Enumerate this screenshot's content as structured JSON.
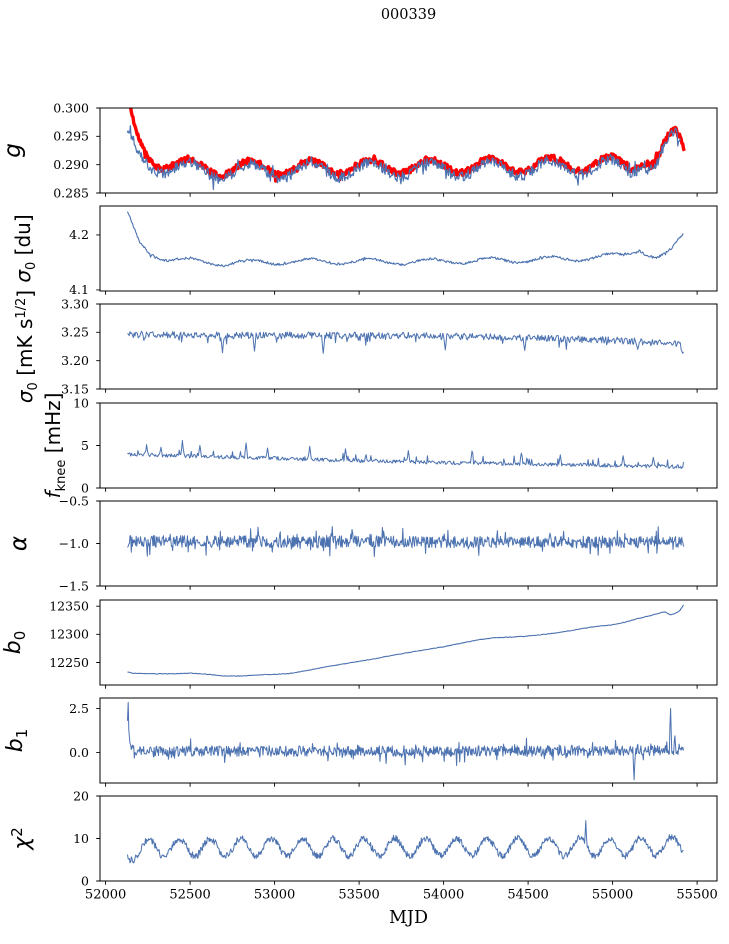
{
  "title": "000339",
  "xlabel": "MJD",
  "colors": {
    "line_blue": "#4c72b0",
    "line_red": "#ff0000",
    "axis": "#000000",
    "background": "#ffffff"
  },
  "axis": {
    "xlim": [
      51967,
      55618
    ],
    "xtick_values": [
      52000,
      52500,
      53000,
      53500,
      54000,
      54500,
      55000,
      55500
    ],
    "xtick_labels": [
      "52000",
      "52500",
      "53000",
      "53500",
      "54000",
      "54500",
      "55000",
      "55500"
    ],
    "shared_x": true
  },
  "chart_data": [
    {
      "type": "line",
      "name": "g",
      "ylabel": "g",
      "ylabel_segments": [
        {
          "t": "g",
          "it": true
        }
      ],
      "ylim": [
        0.285,
        0.3
      ],
      "ytick_values": [
        0.285,
        0.29,
        0.295,
        0.3
      ],
      "ytick_labels": [
        "0.285",
        "0.290",
        "0.295",
        "0.300"
      ],
      "series": [
        {
          "name": "g-reference-red",
          "color": "#ff0000",
          "width": 3.4,
          "n": 680,
          "seed": 11,
          "xrange": [
            52128,
            55425
          ],
          "noise": 0.00055,
          "burst": {
            "prob": 0.05,
            "scale": 0.0008,
            "bias": "both"
          },
          "osc": {
            "amp": 0.0012,
            "period": 355,
            "peak": 52500
          },
          "keypoints": [
            [
              52128,
              0.3018
            ],
            [
              52155,
              0.2978
            ],
            [
              52185,
              0.2946
            ],
            [
              52230,
              0.2922
            ],
            [
              52300,
              0.2908
            ],
            [
              52400,
              0.2901
            ],
            [
              52550,
              0.2896
            ],
            [
              52700,
              0.2892
            ],
            [
              52900,
              0.2896
            ],
            [
              53100,
              0.2894
            ],
            [
              53400,
              0.2897
            ],
            [
              53800,
              0.2897
            ],
            [
              54200,
              0.2898
            ],
            [
              54600,
              0.29
            ],
            [
              55000,
              0.2902
            ],
            [
              55100,
              0.2898
            ],
            [
              55180,
              0.2912
            ],
            [
              55230,
              0.2903
            ],
            [
              55270,
              0.2908
            ],
            [
              55320,
              0.2938
            ],
            [
              55370,
              0.2953
            ],
            [
              55400,
              0.2941
            ],
            [
              55425,
              0.2926
            ]
          ]
        },
        {
          "name": "g-measured-blue",
          "color": "#4c72b0",
          "width": 1.2,
          "n": 700,
          "seed": 12,
          "xrange": [
            52128,
            55400
          ],
          "noise": 0.0009,
          "burst": {
            "prob": 0.07,
            "scale": 0.0016,
            "bias": "both"
          },
          "osc": {
            "amp": 0.0013,
            "period": 355,
            "peak": 52500
          },
          "keypoints": [
            [
              52128,
              0.2948
            ],
            [
              52160,
              0.2931
            ],
            [
              52200,
              0.2914
            ],
            [
              52260,
              0.2902
            ],
            [
              52350,
              0.2896
            ],
            [
              52500,
              0.2891
            ],
            [
              52700,
              0.2886
            ],
            [
              52900,
              0.289
            ],
            [
              53100,
              0.2888
            ],
            [
              53400,
              0.2891
            ],
            [
              53800,
              0.2891
            ],
            [
              54200,
              0.2892
            ],
            [
              54600,
              0.2894
            ],
            [
              55000,
              0.2896
            ],
            [
              55100,
              0.2892
            ],
            [
              55180,
              0.2906
            ],
            [
              55230,
              0.2897
            ],
            [
              55270,
              0.2902
            ],
            [
              55320,
              0.2932
            ],
            [
              55375,
              0.2948
            ],
            [
              55400,
              0.2938
            ]
          ]
        }
      ]
    },
    {
      "type": "line",
      "name": "sigma0-du",
      "ylabel": "σ₀ [du]",
      "ylabel_segments": [
        {
          "t": "σ",
          "it": true
        },
        {
          "t": "0",
          "sub": true
        },
        {
          "t": " [du]"
        }
      ],
      "ylim": [
        4.098,
        4.2526
      ],
      "ytick_values": [
        4.1,
        4.2
      ],
      "ytick_labels": [
        "4.1",
        "4.2"
      ],
      "series": [
        {
          "name": "sigma0-du-line",
          "color": "#4c72b0",
          "width": 1.1,
          "n": 680,
          "seed": 21,
          "xrange": [
            52130,
            55420
          ],
          "noise": 0.0022,
          "burst": {
            "prob": 0.05,
            "scale": 0.004,
            "bias": "both"
          },
          "osc": {
            "amp": 0.005,
            "period": 355,
            "peak": 52500
          },
          "keypoints": [
            [
              52130,
              4.238
            ],
            [
              52160,
              4.215
            ],
            [
              52200,
              4.185
            ],
            [
              52260,
              4.168
            ],
            [
              52350,
              4.158
            ],
            [
              52500,
              4.152
            ],
            [
              52700,
              4.149
            ],
            [
              53000,
              4.151
            ],
            [
              53400,
              4.152
            ],
            [
              53800,
              4.151
            ],
            [
              54200,
              4.153
            ],
            [
              54600,
              4.155
            ],
            [
              54900,
              4.159
            ],
            [
              55050,
              4.163
            ],
            [
              55120,
              4.17
            ],
            [
              55160,
              4.176
            ],
            [
              55210,
              4.165
            ],
            [
              55260,
              4.157
            ],
            [
              55310,
              4.163
            ],
            [
              55350,
              4.17
            ],
            [
              55390,
              4.19
            ],
            [
              55420,
              4.2
            ]
          ]
        }
      ]
    },
    {
      "type": "line",
      "name": "sigma0-mks",
      "ylabel": "σ₀ [mK s¹ᐟ²]",
      "ylabel_segments": [
        {
          "t": "σ",
          "it": true
        },
        {
          "t": "0",
          "sub": true
        },
        {
          "t": " [mK s"
        },
        {
          "t": "1/2",
          "sup": true
        },
        {
          "t": "]"
        }
      ],
      "ylim": [
        3.15,
        3.3
      ],
      "ytick_values": [
        3.15,
        3.2,
        3.25,
        3.3
      ],
      "ytick_labels": [
        "3.15",
        "3.20",
        "3.25",
        "3.30"
      ],
      "series": [
        {
          "name": "sigma0-mks-line",
          "color": "#4c72b0",
          "width": 1.0,
          "n": 680,
          "seed": 31,
          "xrange": [
            52130,
            55420
          ],
          "noise": 0.006,
          "burst": {
            "prob": 0.07,
            "scale": 0.013,
            "bias": "down"
          },
          "spikes": [
            [
              52690,
              3.214
            ],
            [
              52880,
              3.217
            ],
            [
              53290,
              3.213
            ],
            [
              54010,
              3.219
            ],
            [
              54480,
              3.218
            ],
            [
              55150,
              3.22
            ],
            [
              55415,
              3.213
            ]
          ],
          "keypoints": [
            [
              52130,
              3.246
            ],
            [
              53000,
              3.245
            ],
            [
              53800,
              3.244
            ],
            [
              54400,
              3.241
            ],
            [
              54900,
              3.237
            ],
            [
              55300,
              3.232
            ],
            [
              55400,
              3.228
            ],
            [
              55420,
              3.22
            ]
          ]
        }
      ]
    },
    {
      "type": "line",
      "name": "fknee",
      "ylabel": "fknee [mHz]",
      "ylabel_segments": [
        {
          "t": "f",
          "it": true
        },
        {
          "t": "knee",
          "sub": true
        },
        {
          "t": " [mHz]"
        }
      ],
      "ylim": [
        0,
        10
      ],
      "ytick_values": [
        0,
        5,
        10
      ],
      "ytick_labels": [
        "0",
        "5",
        "10"
      ],
      "series": [
        {
          "name": "fknee-line",
          "color": "#4c72b0",
          "width": 1.0,
          "n": 700,
          "seed": 41,
          "xrange": [
            52130,
            55420
          ],
          "noise": 0.22,
          "burst": {
            "prob": 0.1,
            "scale": 0.8,
            "bias": "up"
          },
          "spikes": [
            [
              52245,
              5.1
            ],
            [
              52330,
              4.8
            ],
            [
              52455,
              5.6
            ],
            [
              52560,
              5.0
            ],
            [
              52830,
              5.3
            ],
            [
              52960,
              4.7
            ],
            [
              53210,
              4.9
            ],
            [
              53420,
              4.6
            ],
            [
              53790,
              4.4
            ],
            [
              54170,
              4.35
            ],
            [
              54460,
              4.1
            ],
            [
              54690,
              3.9
            ],
            [
              55060,
              3.8
            ],
            [
              55240,
              3.6
            ]
          ],
          "keypoints": [
            [
              52130,
              3.95
            ],
            [
              52400,
              3.8
            ],
            [
              52700,
              3.65
            ],
            [
              53000,
              3.5
            ],
            [
              53300,
              3.3
            ],
            [
              53600,
              3.15
            ],
            [
              54000,
              2.98
            ],
            [
              54400,
              2.85
            ],
            [
              54800,
              2.72
            ],
            [
              55100,
              2.62
            ],
            [
              55420,
              2.5
            ]
          ]
        }
      ]
    },
    {
      "type": "line",
      "name": "alpha",
      "ylabel": "α",
      "ylabel_segments": [
        {
          "t": "α",
          "it": true
        }
      ],
      "ylim": [
        -1.5,
        -0.5
      ],
      "ytick_values": [
        -1.5,
        -1.0,
        -0.5
      ],
      "ytick_labels": [
        "−1.5",
        "−1.0",
        "−0.5"
      ],
      "series": [
        {
          "name": "alpha-line",
          "color": "#4c72b0",
          "width": 1.0,
          "n": 900,
          "seed": 51,
          "xrange": [
            52130,
            55420
          ],
          "noise": 0.07,
          "burst": {
            "prob": 0.12,
            "scale": 0.12,
            "bias": "both"
          },
          "keypoints": [
            [
              52130,
              -0.975
            ],
            [
              55420,
              -0.985
            ]
          ]
        }
      ]
    },
    {
      "type": "line",
      "name": "b0",
      "ylabel": "b₀",
      "ylabel_segments": [
        {
          "t": "b",
          "it": true
        },
        {
          "t": "0",
          "sub": true
        }
      ],
      "ylim": [
        12210,
        12361
      ],
      "ytick_values": [
        12250,
        12300,
        12350
      ],
      "ytick_labels": [
        "12250",
        "12300",
        "12350"
      ],
      "series": [
        {
          "name": "b0-line",
          "color": "#4c72b0",
          "width": 1.1,
          "n": 460,
          "seed": 61,
          "xrange": [
            52130,
            55420
          ],
          "noise": 0.5,
          "keypoints": [
            [
              52130,
              12233
            ],
            [
              52160,
              12231
            ],
            [
              52250,
              12230
            ],
            [
              52400,
              12230
            ],
            [
              52500,
              12231
            ],
            [
              52600,
              12229
            ],
            [
              52700,
              12226
            ],
            [
              52800,
              12226
            ],
            [
              52900,
              12228
            ],
            [
              53000,
              12229
            ],
            [
              53080,
              12230
            ],
            [
              53200,
              12236
            ],
            [
              53300,
              12242
            ],
            [
              53400,
              12247
            ],
            [
              53500,
              12252
            ],
            [
              53600,
              12257
            ],
            [
              53700,
              12263
            ],
            [
              53800,
              12268
            ],
            [
              53900,
              12273
            ],
            [
              54000,
              12278
            ],
            [
              54100,
              12284
            ],
            [
              54200,
              12290
            ],
            [
              54300,
              12294
            ],
            [
              54400,
              12295
            ],
            [
              54500,
              12297
            ],
            [
              54600,
              12300
            ],
            [
              54700,
              12304
            ],
            [
              54800,
              12309
            ],
            [
              54900,
              12314
            ],
            [
              55000,
              12317
            ],
            [
              55080,
              12322
            ],
            [
              55150,
              12328
            ],
            [
              55220,
              12333
            ],
            [
              55280,
              12338
            ],
            [
              55310,
              12340
            ],
            [
              55340,
              12335
            ],
            [
              55370,
              12337
            ],
            [
              55395,
              12341
            ],
            [
              55420,
              12352
            ]
          ]
        }
      ]
    },
    {
      "type": "line",
      "name": "b1",
      "ylabel": "b₁",
      "ylabel_segments": [
        {
          "t": "b",
          "it": true
        },
        {
          "t": "1",
          "sub": true
        }
      ],
      "ylim": [
        -1.73,
        3.1
      ],
      "ytick_values": [
        0.0,
        2.5
      ],
      "ytick_labels": [
        "0.0",
        "2.5"
      ],
      "series": [
        {
          "name": "b1-line",
          "color": "#4c72b0",
          "width": 1.0,
          "n": 900,
          "seed": 71,
          "xrange": [
            52130,
            55420
          ],
          "noise": 0.3,
          "burst": {
            "prob": 0.12,
            "scale": 0.55,
            "bias": "both"
          },
          "spikes": [
            [
              52133,
              2.85
            ],
            [
              52140,
              0.9
            ],
            [
              55128,
              -1.55
            ],
            [
              55342,
              2.5
            ],
            [
              55368,
              0.95
            ]
          ],
          "keypoints": [
            [
              52130,
              0.6
            ],
            [
              52150,
              0.15
            ],
            [
              52300,
              0.08
            ],
            [
              55420,
              0.1
            ]
          ]
        }
      ]
    },
    {
      "type": "line",
      "name": "chi2",
      "ylabel": "χ²",
      "ylabel_segments": [
        {
          "t": "χ",
          "it": true
        },
        {
          "t": "2",
          "sup": true
        }
      ],
      "ylim": [
        0,
        20
      ],
      "ytick_values": [
        0,
        10,
        20
      ],
      "ytick_labels": [
        "0",
        "10",
        "20"
      ],
      "series": [
        {
          "name": "chi2-line",
          "color": "#4c72b0",
          "width": 1.0,
          "n": 900,
          "seed": 81,
          "xrange": [
            52130,
            55420
          ],
          "noise": 0.8,
          "osc": {
            "amp": 2.1,
            "period": 182,
            "peak": 52255
          },
          "spikes": [
            [
              54840,
              14.2
            ]
          ],
          "keypoints": [
            [
              52130,
              6.5
            ],
            [
              52200,
              7.6
            ],
            [
              52400,
              7.9
            ],
            [
              55000,
              8.0
            ],
            [
              55420,
              8.3
            ]
          ]
        }
      ]
    }
  ]
}
